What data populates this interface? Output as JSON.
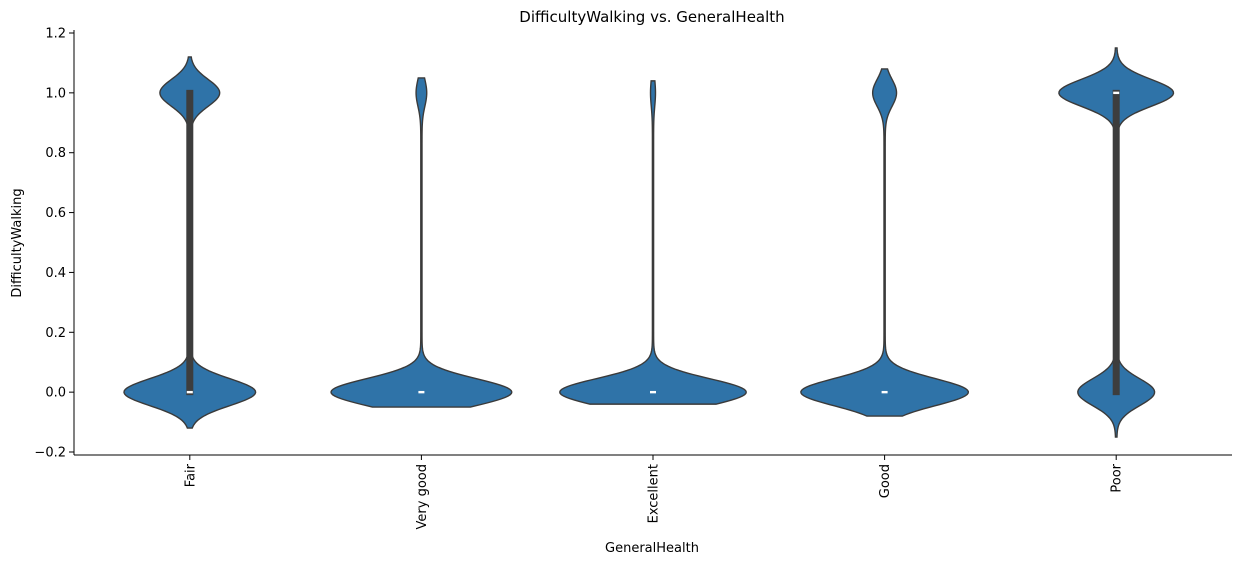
{
  "chart_data": {
    "type": "violin",
    "title": "DifficultyWalking vs. GeneralHealth",
    "xlabel": "GeneralHealth",
    "ylabel": "DifficultyWalking",
    "categories": [
      "Fair",
      "Very good",
      "Excellent",
      "Good",
      "Poor"
    ],
    "ylim": [
      -0.21,
      1.21
    ],
    "yticks": [
      -0.2,
      0.0,
      0.2,
      0.4,
      0.6,
      0.8,
      1.0,
      1.2
    ],
    "ytick_labels": [
      "−0.2",
      "0.0",
      "0.2",
      "0.4",
      "0.6",
      "0.8",
      "1.0",
      "1.2"
    ],
    "grid": false,
    "color": "#2f73a8",
    "edge_color": "#3a3a3a",
    "series": [
      {
        "category": "Fair",
        "share_no": 0.69,
        "share_yes": 0.31,
        "q1": 0,
        "median": 0,
        "q3": 1,
        "min": -0.12,
        "max": 1.12
      },
      {
        "category": "Very good",
        "share_no": 0.95,
        "share_yes": 0.05,
        "q1": 0,
        "median": 0,
        "q3": 0,
        "min": -0.05,
        "max": 1.05
      },
      {
        "category": "Excellent",
        "share_no": 0.98,
        "share_yes": 0.02,
        "q1": 0,
        "median": 0,
        "q3": 0,
        "min": -0.04,
        "max": 1.04
      },
      {
        "category": "Good",
        "share_no": 0.88,
        "share_yes": 0.12,
        "q1": 0,
        "median": 0,
        "q3": 0,
        "min": -0.08,
        "max": 1.08
      },
      {
        "category": "Poor",
        "share_no": 0.4,
        "share_yes": 0.6,
        "q1": 0,
        "median": 1,
        "q3": 1,
        "min": -0.15,
        "max": 1.15
      }
    ]
  }
}
